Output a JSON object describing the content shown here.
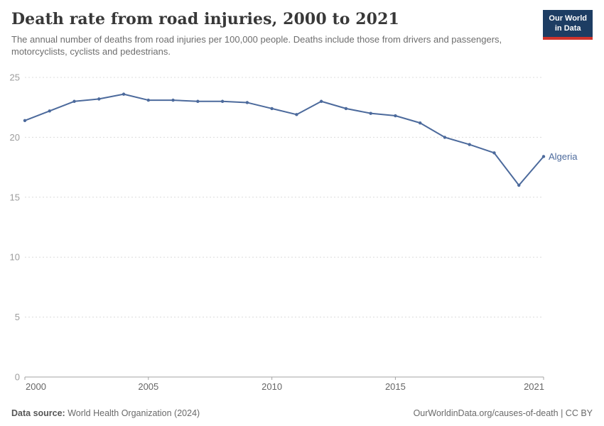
{
  "header": {
    "title": "Death rate from road injuries, 2000 to 2021",
    "subtitle": "The annual number of deaths from road injuries per 100,000 people. Deaths include those from drivers and passengers, motorcyclists, cyclists and pedestrians.",
    "logo": {
      "line1": "Our World",
      "line2": "in Data"
    }
  },
  "chart_data": {
    "type": "line",
    "title": "Death rate from road injuries, 2000 to 2021",
    "xlabel": "",
    "ylabel": "",
    "xlim": [
      2000,
      2021
    ],
    "ylim": [
      0,
      25
    ],
    "x_ticks": [
      2000,
      2005,
      2010,
      2015,
      2021
    ],
    "y_ticks": [
      0,
      5,
      10,
      15,
      20,
      25
    ],
    "grid": "horizontal-dashed",
    "legend_position": "end-of-line-label",
    "series": [
      {
        "name": "Algeria",
        "color": "#4C6A9C",
        "x": [
          2000,
          2001,
          2002,
          2003,
          2004,
          2005,
          2006,
          2007,
          2008,
          2009,
          2010,
          2011,
          2012,
          2013,
          2014,
          2015,
          2016,
          2017,
          2018,
          2019,
          2020,
          2021
        ],
        "values": [
          21.4,
          22.2,
          23.0,
          23.2,
          23.6,
          23.1,
          23.1,
          23.0,
          23.0,
          22.9,
          22.4,
          21.9,
          23.0,
          22.4,
          22.0,
          21.8,
          21.2,
          20.0,
          19.4,
          18.7,
          16.0,
          18.4
        ]
      }
    ]
  },
  "footer": {
    "source_label": "Data source:",
    "source_value": " World Health Organization (2024)",
    "credit": "OurWorldinData.org/causes-of-death | CC BY"
  },
  "colors": {
    "line": "#4C6A9C",
    "end_label": "#4C6A9C",
    "grid": "#dcdcdc",
    "axis": "#a3a3a3",
    "y_tick_label": "#9c9c9c",
    "x_tick_label": "#666666",
    "logo_bg": "#1d3d63",
    "logo_accent": "#d0342c"
  }
}
